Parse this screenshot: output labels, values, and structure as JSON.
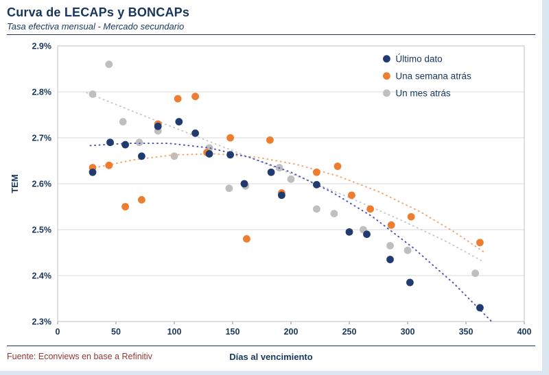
{
  "page": {
    "title": "Curva de LECAPs y BONCAPs",
    "subtitle": "Tasa efectiva mensual - Mercado secundario",
    "source": "Fuente: Econviews en base a Refinitiv"
  },
  "chart_data": {
    "type": "scatter",
    "title": "Curva de LECAPs y BONCAPs",
    "subtitle": "Tasa efectiva mensual - Mercado secundario",
    "xlabel": "Días al vencimiento",
    "ylabel": "TEM",
    "xlim": [
      0,
      400
    ],
    "ylim": [
      2.3,
      2.9
    ],
    "grid": "horizontal",
    "legend_position": "top-right-inside",
    "x_ticks": [
      {
        "v": 0,
        "label": "0"
      },
      {
        "v": 50,
        "label": "50"
      },
      {
        "v": 100,
        "label": "100"
      },
      {
        "v": 150,
        "label": "150"
      },
      {
        "v": 200,
        "label": "200"
      },
      {
        "v": 250,
        "label": "250"
      },
      {
        "v": 300,
        "label": "300"
      },
      {
        "v": 350,
        "label": "350"
      },
      {
        "v": 400,
        "label": "400"
      }
    ],
    "y_ticks": [
      {
        "v": 2.3,
        "label": "2.3%"
      },
      {
        "v": 2.4,
        "label": "2.4%"
      },
      {
        "v": 2.5,
        "label": "2.5%"
      },
      {
        "v": 2.6,
        "label": "2.6%"
      },
      {
        "v": 2.7,
        "label": "2.7%"
      },
      {
        "v": 2.8,
        "label": "2.8%"
      },
      {
        "v": 2.9,
        "label": "2.9%"
      }
    ],
    "series": [
      {
        "name": "Último dato",
        "color": "#1F3B70",
        "trend_color": "#5156BE",
        "points": [
          [
            30,
            2.625
          ],
          [
            45,
            2.69
          ],
          [
            58,
            2.685
          ],
          [
            72,
            2.66
          ],
          [
            86,
            2.725
          ],
          [
            104,
            2.735
          ],
          [
            118,
            2.71
          ],
          [
            130,
            2.665
          ],
          [
            148,
            2.663
          ],
          [
            160,
            2.6
          ],
          [
            183,
            2.625
          ],
          [
            192,
            2.575
          ],
          [
            222,
            2.598
          ],
          [
            250,
            2.495
          ],
          [
            265,
            2.49
          ],
          [
            285,
            2.435
          ],
          [
            302,
            2.385
          ],
          [
            362,
            2.33
          ]
        ],
        "trend": [
          [
            28,
            2.683
          ],
          [
            60,
            2.688
          ],
          [
            95,
            2.688
          ],
          [
            130,
            2.678
          ],
          [
            165,
            2.657
          ],
          [
            200,
            2.625
          ],
          [
            235,
            2.582
          ],
          [
            270,
            2.528
          ],
          [
            305,
            2.46
          ],
          [
            340,
            2.382
          ],
          [
            372,
            2.3
          ]
        ]
      },
      {
        "name": "Una semana atrás",
        "color": "#ED7D31",
        "trend_color": "#F5A870",
        "points": [
          [
            30,
            2.635
          ],
          [
            44,
            2.64
          ],
          [
            58,
            2.55
          ],
          [
            72,
            2.565
          ],
          [
            86,
            2.73
          ],
          [
            103,
            2.785
          ],
          [
            118,
            2.79
          ],
          [
            128,
            2.668
          ],
          [
            148,
            2.7
          ],
          [
            162,
            2.48
          ],
          [
            182,
            2.695
          ],
          [
            192,
            2.58
          ],
          [
            222,
            2.625
          ],
          [
            240,
            2.638
          ],
          [
            252,
            2.575
          ],
          [
            268,
            2.545
          ],
          [
            286,
            2.51
          ],
          [
            303,
            2.528
          ],
          [
            362,
            2.472
          ]
        ],
        "trend": [
          [
            28,
            2.633
          ],
          [
            65,
            2.652
          ],
          [
            100,
            2.663
          ],
          [
            135,
            2.665
          ],
          [
            170,
            2.658
          ],
          [
            205,
            2.642
          ],
          [
            240,
            2.617
          ],
          [
            275,
            2.583
          ],
          [
            310,
            2.54
          ],
          [
            340,
            2.495
          ],
          [
            365,
            2.452
          ]
        ]
      },
      {
        "name": "Un mes atrás",
        "color": "#BFBFBF",
        "trend_color": "#C9C9C9",
        "points": [
          [
            30,
            2.795
          ],
          [
            44,
            2.86
          ],
          [
            56,
            2.735
          ],
          [
            70,
            2.69
          ],
          [
            86,
            2.715
          ],
          [
            100,
            2.66
          ],
          [
            130,
            2.678
          ],
          [
            147,
            2.59
          ],
          [
            161,
            2.595
          ],
          [
            190,
            2.635
          ],
          [
            200,
            2.61
          ],
          [
            222,
            2.545
          ],
          [
            237,
            2.535
          ],
          [
            262,
            2.5
          ],
          [
            285,
            2.465
          ],
          [
            300,
            2.455
          ],
          [
            358,
            2.405
          ]
        ],
        "trend": [
          [
            25,
            2.798
          ],
          [
            70,
            2.752
          ],
          [
            115,
            2.707
          ],
          [
            160,
            2.662
          ],
          [
            205,
            2.617
          ],
          [
            250,
            2.57
          ],
          [
            295,
            2.52
          ],
          [
            335,
            2.472
          ],
          [
            365,
            2.43
          ]
        ]
      }
    ]
  }
}
